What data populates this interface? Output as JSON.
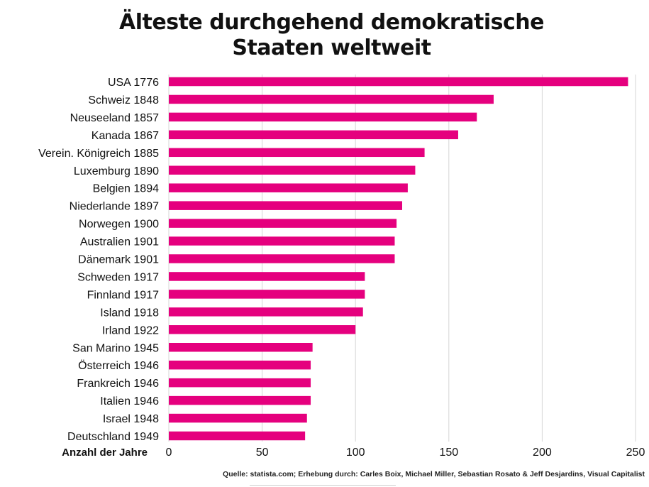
{
  "chart_data": {
    "type": "bar",
    "orientation": "horizontal",
    "title_lines": [
      "Älteste durchgehend demokratische",
      "Staaten weltweit"
    ],
    "xlabel": "Anzahl der Jahre",
    "ylabel": "",
    "xlim": [
      0,
      250
    ],
    "xticks": [
      0,
      50,
      100,
      150,
      200,
      250
    ],
    "grid": true,
    "bar_color": "#E5007E",
    "categories": [
      "USA 1776",
      "Schweiz 1848",
      "Neuseeland 1857",
      "Kanada 1867",
      "Verein. Königreich 1885",
      "Luxemburg 1890",
      "Belgien 1894",
      "Niederlande 1897",
      "Norwegen 1900",
      "Australien 1901",
      "Dänemark 1901",
      "Schweden 1917",
      "Finnland 1917",
      "Island 1918",
      "Irland 1922",
      "San Marino 1945",
      "Österreich 1946",
      "Frankreich 1946",
      "Italien 1946",
      "Israel 1948",
      "Deutschland 1949"
    ],
    "values": [
      246,
      174,
      165,
      155,
      137,
      132,
      128,
      125,
      122,
      121,
      121,
      105,
      105,
      104,
      100,
      77,
      76,
      76,
      76,
      74,
      73
    ]
  },
  "source": "Quelle: statista.com; Erhebung durch: Carles Boix, Michael Miller, Sebastian Rosato & Jeff Desjardins, Visual Capitalist"
}
